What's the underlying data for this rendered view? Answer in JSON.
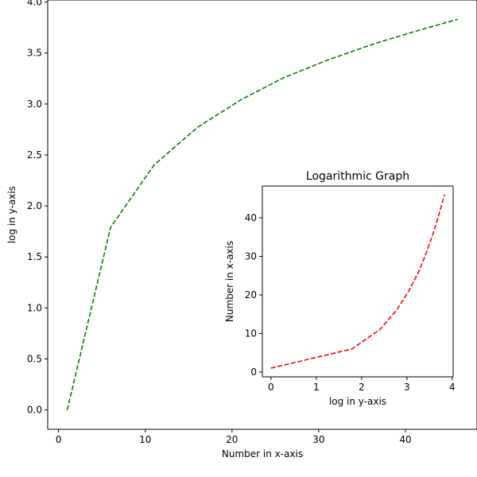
{
  "chart_data": [
    {
      "type": "line",
      "title": "",
      "xlabel": "Number in x-axis",
      "ylabel": "log in y-axis",
      "xlim": [
        -1.25,
        48.25
      ],
      "ylim": [
        -0.19,
        4.02
      ],
      "xticks": [
        0,
        10,
        20,
        30,
        40
      ],
      "yticks": [
        0.0,
        0.5,
        1.0,
        1.5,
        2.0,
        2.5,
        3.0,
        3.5,
        4.0
      ],
      "xtick_labels": [
        "0",
        "10",
        "20",
        "30",
        "40"
      ],
      "ytick_labels": [
        "0.0",
        "0.5",
        "1.0",
        "1.5",
        "2.0",
        "2.5",
        "3.0",
        "3.5",
        "4.0"
      ],
      "grid": false,
      "series": [
        {
          "color": "#008000",
          "linestyle": "dashed",
          "x": [
            1,
            6,
            11,
            16,
            21,
            26,
            31,
            36,
            41,
            46
          ],
          "y": [
            0.0,
            1.79,
            2.4,
            2.77,
            3.04,
            3.26,
            3.43,
            3.58,
            3.71,
            3.83
          ]
        }
      ]
    },
    {
      "type": "line",
      "title": "Logarithmic Graph",
      "xlabel": "log in y-axis",
      "ylabel": "Number in x-axis",
      "xlim": [
        -0.19,
        4.02
      ],
      "ylim": [
        -1.25,
        48.25
      ],
      "xticks": [
        0,
        1,
        2,
        3,
        4
      ],
      "yticks": [
        0,
        10,
        20,
        30,
        40
      ],
      "xtick_labels": [
        "0",
        "1",
        "2",
        "3",
        "4"
      ],
      "ytick_labels": [
        "0",
        "10",
        "20",
        "30",
        "40"
      ],
      "grid": false,
      "series": [
        {
          "color": "#ff0000",
          "linestyle": "dashed",
          "x": [
            0.0,
            1.79,
            2.4,
            2.77,
            3.04,
            3.26,
            3.43,
            3.58,
            3.71,
            3.83
          ],
          "y": [
            1,
            6,
            11,
            16,
            21,
            26,
            31,
            36,
            41,
            46
          ]
        }
      ]
    }
  ]
}
